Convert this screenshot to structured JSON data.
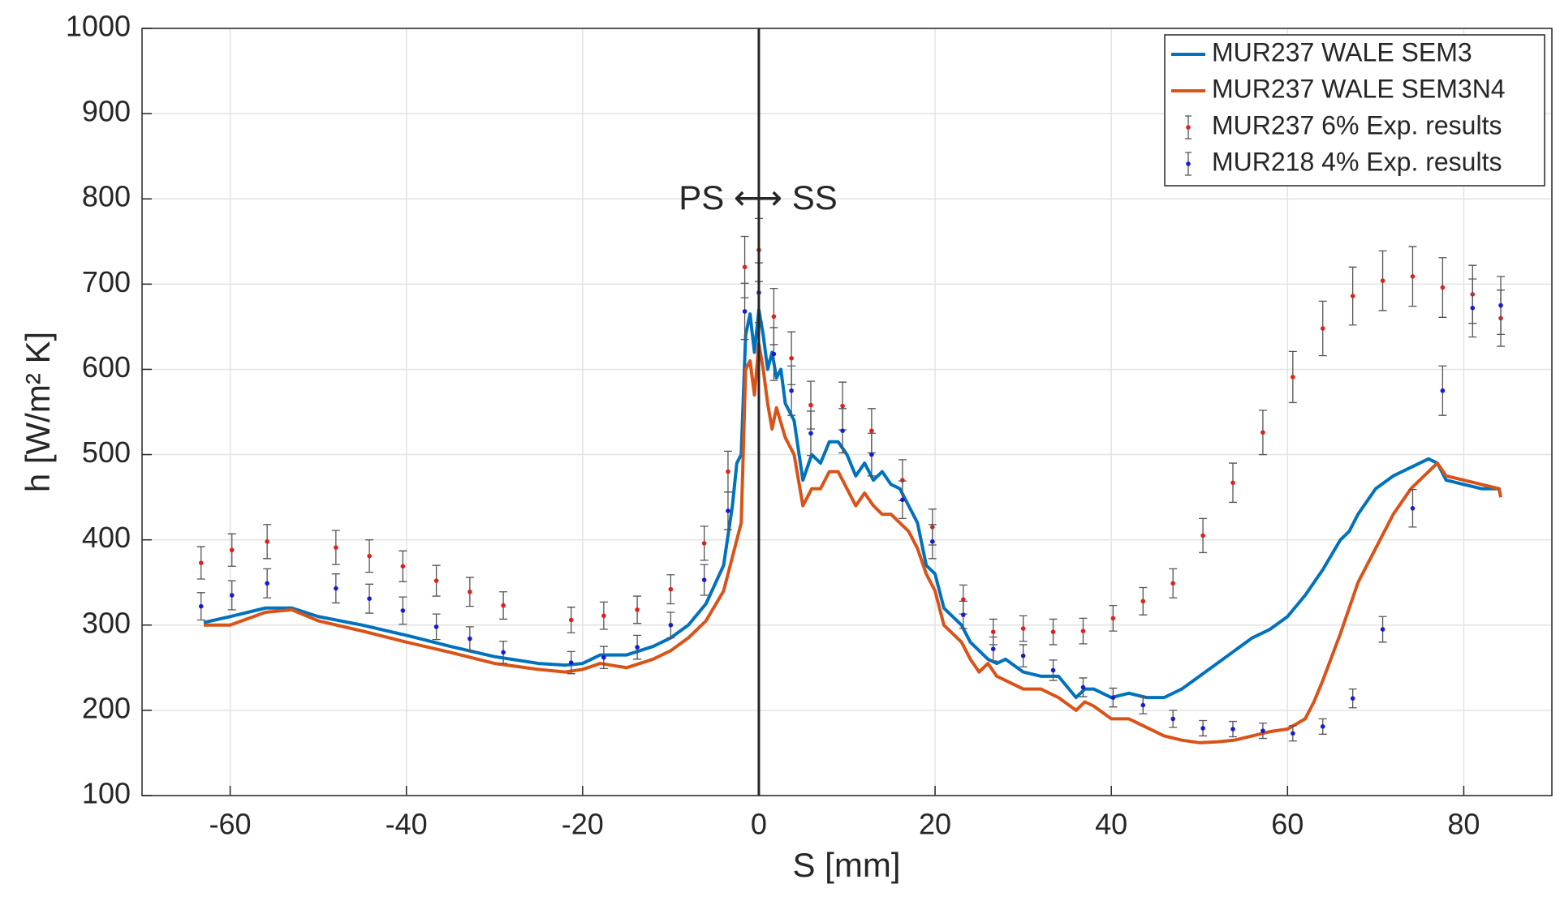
{
  "chart_data": {
    "type": "line",
    "xlabel": "S [mm]",
    "ylabel": "h [W/m² K]",
    "annotation": "PS ⟷ SS",
    "vline": 0,
    "xlim": [
      -70,
      90
    ],
    "xticks": [
      -60,
      -40,
      -20,
      0,
      20,
      40,
      60,
      80
    ],
    "ylim": [
      100,
      1000
    ],
    "yticks": [
      100,
      200,
      300,
      400,
      500,
      600,
      700,
      800,
      900,
      1000
    ],
    "grid": true,
    "legend": "upper right",
    "series": [
      {
        "name": "MUR237 WALE SEM3",
        "color": "#0072bd",
        "kind": "line",
        "x": [
          -63,
          -60,
          -56,
          -53,
          -50,
          -45,
          -40,
          -35,
          -30,
          -25,
          -22,
          -20,
          -18,
          -15,
          -12,
          -10,
          -8,
          -6,
          -4,
          -3,
          -2.5,
          -2,
          -1.5,
          -1,
          -0.5,
          0,
          0.5,
          1,
          1.5,
          2,
          2.5,
          3,
          4,
          5,
          6,
          7,
          8,
          9,
          10,
          11,
          12,
          13,
          14,
          15,
          16,
          17,
          18,
          19,
          20,
          21,
          22,
          23,
          24,
          25,
          26,
          27,
          28,
          30,
          32,
          34,
          36,
          37,
          38,
          40,
          42,
          44,
          46,
          48,
          50,
          52,
          54,
          56,
          58,
          60,
          62,
          64,
          66,
          67,
          68,
          70,
          72,
          74,
          76,
          77,
          78,
          80,
          82,
          84,
          84.2
        ],
        "values": [
          303,
          310,
          320,
          320,
          310,
          300,
          288,
          275,
          263,
          255,
          253,
          255,
          265,
          265,
          275,
          285,
          300,
          325,
          370,
          440,
          490,
          500,
          640,
          665,
          620,
          670,
          640,
          600,
          620,
          590,
          600,
          560,
          540,
          470,
          500,
          490,
          515,
          515,
          500,
          475,
          490,
          470,
          480,
          465,
          460,
          440,
          420,
          370,
          360,
          320,
          310,
          300,
          280,
          270,
          260,
          255,
          260,
          245,
          240,
          240,
          215,
          225,
          225,
          215,
          220,
          215,
          215,
          225,
          240,
          255,
          270,
          285,
          295,
          310,
          335,
          365,
          400,
          410,
          430,
          460,
          475,
          485,
          495,
          490,
          470,
          465,
          460,
          460,
          450
        ]
      },
      {
        "name": "MUR237 WALE SEM3N4",
        "color": "#d95319",
        "kind": "line",
        "x": [
          -63,
          -60,
          -56,
          -53,
          -50,
          -45,
          -40,
          -35,
          -30,
          -25,
          -22,
          -20,
          -18,
          -15,
          -12,
          -10,
          -8,
          -6,
          -4,
          -3,
          -2,
          -1.5,
          -1,
          -0.5,
          0,
          0.5,
          1,
          1.5,
          2,
          3,
          4,
          5,
          6,
          7,
          8,
          9,
          10,
          11,
          12,
          13,
          14,
          15,
          16,
          17,
          18,
          19,
          20,
          21,
          22,
          23,
          24,
          25,
          26,
          27,
          28,
          30,
          32,
          34,
          36,
          37,
          38,
          40,
          42,
          44,
          46,
          48,
          50,
          52,
          54,
          56,
          58,
          60,
          62,
          63,
          64,
          66,
          68,
          70,
          72,
          74,
          76,
          77,
          78,
          80,
          82,
          84,
          84.2
        ],
        "values": [
          300,
          300,
          315,
          318,
          305,
          293,
          280,
          268,
          255,
          248,
          245,
          248,
          255,
          250,
          260,
          270,
          285,
          305,
          340,
          380,
          420,
          600,
          610,
          570,
          630,
          600,
          560,
          530,
          555,
          520,
          500,
          440,
          460,
          460,
          480,
          480,
          460,
          440,
          455,
          440,
          430,
          430,
          420,
          410,
          390,
          360,
          340,
          300,
          290,
          280,
          260,
          245,
          255,
          240,
          235,
          225,
          225,
          215,
          200,
          210,
          205,
          190,
          190,
          180,
          170,
          165,
          162,
          163,
          165,
          170,
          175,
          178,
          190,
          210,
          235,
          290,
          350,
          390,
          430,
          460,
          480,
          490,
          475,
          470,
          465,
          460,
          450
        ]
      },
      {
        "name": "MUR237 6% Exp. results",
        "color": "#e0201b",
        "kind": "errorbar",
        "x": [
          -63.3,
          -59.8,
          -55.8,
          -48,
          -44.2,
          -40.4,
          -36.6,
          -32.8,
          -29,
          -21.3,
          -17.6,
          -13.8,
          -10,
          -6.2,
          -3.5,
          -1.6,
          0,
          1.7,
          3.7,
          5.9,
          9.5,
          12.8,
          16.3,
          19.7,
          23.2,
          26.6,
          30,
          33.4,
          36.8,
          40.2,
          43.6,
          47,
          50.4,
          53.8,
          57.2,
          60.6,
          64,
          67.4,
          70.8,
          74.2,
          77.6,
          81,
          84.2
        ],
        "values": [
          373,
          388,
          398,
          391,
          381,
          369,
          352,
          339,
          323,
          306,
          311,
          318,
          342,
          396,
          480,
          720,
          740,
          662,
          613,
          558,
          557,
          528,
          470,
          415,
          330,
          292,
          296,
          292,
          293,
          308,
          328,
          349,
          405,
          467,
          526,
          591,
          648,
          686,
          704,
          709,
          696,
          688,
          660
        ],
        "errors": [
          19,
          19,
          20,
          20,
          19,
          18,
          18,
          17,
          16,
          15,
          16,
          16,
          17,
          20,
          24,
          36,
          37,
          33,
          31,
          28,
          28,
          26,
          24,
          21,
          17,
          15,
          15,
          15,
          15,
          15,
          16,
          17,
          20,
          23,
          26,
          30,
          32,
          34,
          35,
          35,
          35,
          34,
          33
        ]
      },
      {
        "name": "MUR218 4% Exp. results",
        "color": "#1a1ad0",
        "kind": "errorbar",
        "x": [
          -63.3,
          -59.8,
          -55.8,
          -48,
          -44.2,
          -40.4,
          -36.6,
          -32.8,
          -29,
          -21.3,
          -17.6,
          -13.8,
          -10,
          -6.2,
          -3.5,
          -1.6,
          0,
          1.7,
          3.7,
          5.9,
          9.5,
          12.8,
          16.3,
          19.7,
          23.2,
          26.6,
          30,
          33.4,
          36.8,
          40.2,
          43.6,
          47,
          50.4,
          53.8,
          57.2,
          60.6,
          64,
          67.4,
          70.8,
          74.2,
          77.6,
          81,
          84.2
        ],
        "values": [
          322,
          335,
          349,
          343,
          331,
          317,
          298,
          284,
          268,
          256,
          262,
          274,
          300,
          353,
          434,
          668,
          690,
          618,
          575,
          525,
          528,
          500,
          447,
          398,
          312,
          272,
          264,
          247,
          227,
          215,
          206,
          190,
          179,
          178,
          176,
          173,
          181,
          214,
          295,
          437,
          575,
          672,
          675
        ],
        "errors": [
          16,
          17,
          17,
          17,
          17,
          16,
          15,
          14,
          13,
          13,
          13,
          14,
          15,
          18,
          22,
          33,
          35,
          31,
          29,
          26,
          26,
          25,
          22,
          20,
          16,
          14,
          13,
          12,
          11,
          11,
          10,
          10,
          9,
          9,
          9,
          9,
          9,
          11,
          15,
          22,
          29,
          34,
          34
        ]
      }
    ]
  }
}
